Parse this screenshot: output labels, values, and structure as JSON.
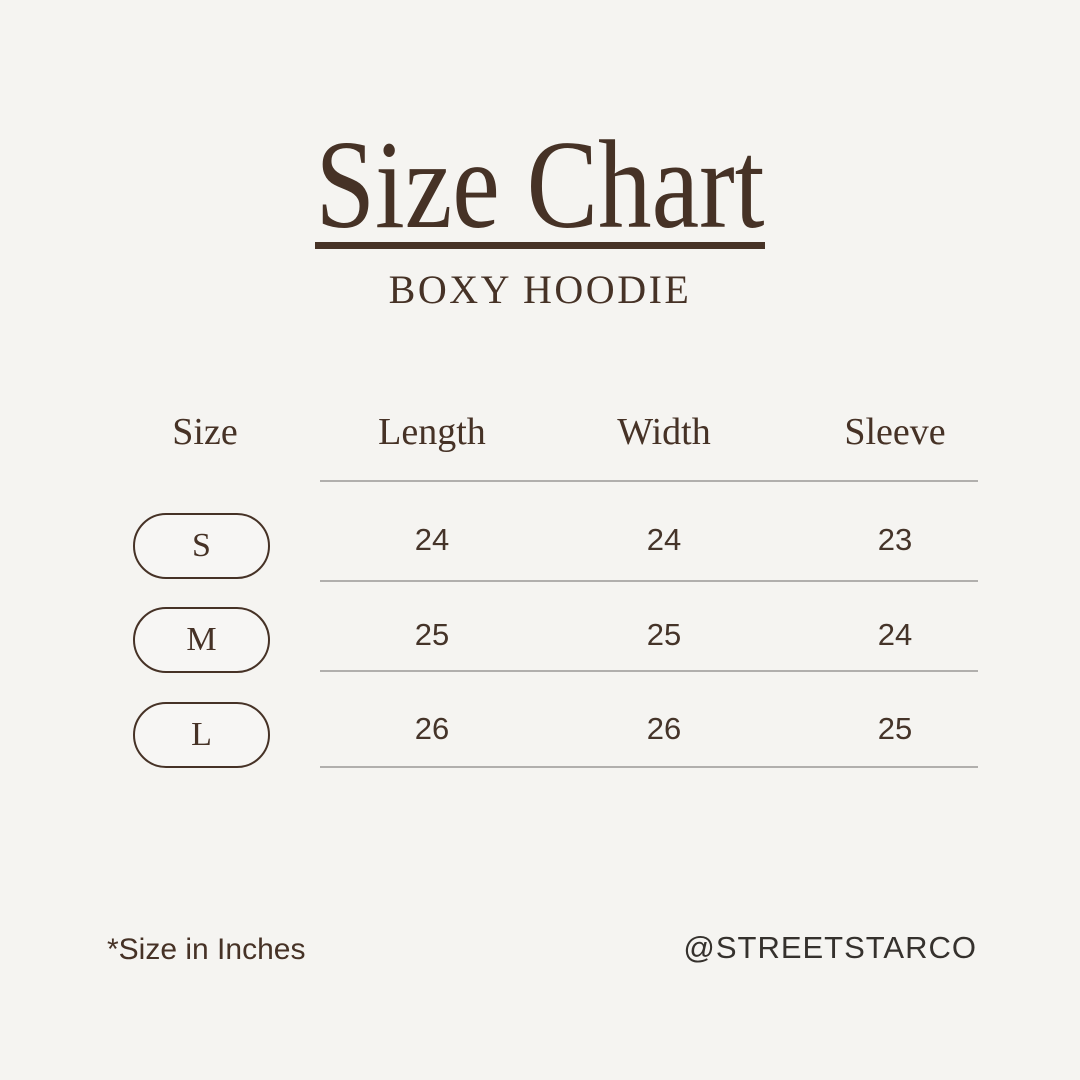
{
  "page": {
    "background": "#f5f4f1",
    "accent_brown": "#463226",
    "rule_gray": "#b1afad"
  },
  "header": {
    "title": "Size Chart",
    "subtitle": "BOXY HOODIE"
  },
  "table": {
    "columns": [
      "Size",
      "Length",
      "Width",
      "Sleeve"
    ],
    "rows": [
      {
        "size": "S",
        "length": "24",
        "width": "24",
        "sleeve": "23"
      },
      {
        "size": "M",
        "length": "25",
        "width": "25",
        "sleeve": "24"
      },
      {
        "size": "L",
        "length": "26",
        "width": "26",
        "sleeve": "25"
      }
    ]
  },
  "footer": {
    "note": "*Size in Inches",
    "handle": "@STREETSTARCO"
  },
  "chart_data": {
    "type": "table",
    "title": "Size Chart",
    "subtitle": "BOXY HOODIE",
    "columns": [
      "Size",
      "Length",
      "Width",
      "Sleeve"
    ],
    "rows": [
      [
        "S",
        24,
        24,
        23
      ],
      [
        "M",
        25,
        25,
        24
      ],
      [
        "L",
        26,
        26,
        25
      ]
    ],
    "units": "inches",
    "note": "*Size in Inches",
    "handle": "@STREETSTARCO"
  }
}
